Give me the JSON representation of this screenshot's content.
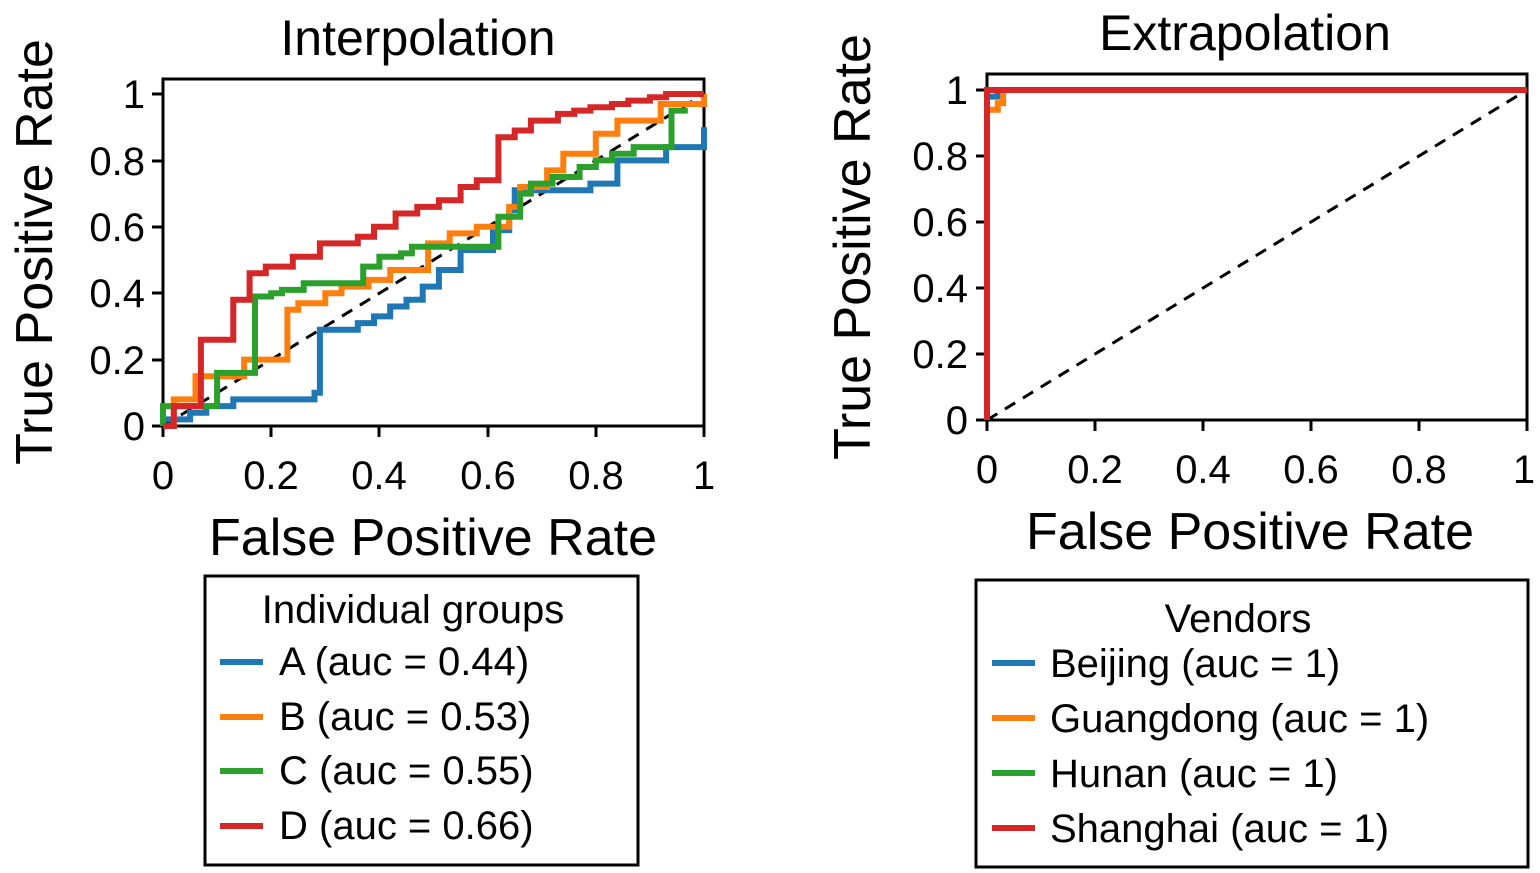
{
  "chart_data": [
    {
      "type": "line",
      "title": "Interpolation",
      "xlabel": "False Positive Rate",
      "ylabel": "True Positive Rate",
      "xlim": [
        0,
        1
      ],
      "ylim": [
        0,
        1
      ],
      "xticks": [
        "0",
        "0.2",
        "0.4",
        "0.6",
        "0.8",
        "1"
      ],
      "yticks": [
        "0",
        "0.2",
        "0.4",
        "0.6",
        "0.8",
        "1"
      ],
      "grid": false,
      "diagonal": true,
      "legend": {
        "title": "Individual groups",
        "placement": "below",
        "entries": [
          "A (auc = 0.44)",
          "B (auc = 0.53)",
          "C (auc = 0.55)",
          "D (auc = 0.66)"
        ]
      },
      "series": [
        {
          "name": "A (auc = 0.44)",
          "color": "#1f77b4",
          "x": [
            0,
            0,
            0.05,
            0.05,
            0.08,
            0.08,
            0.13,
            0.13,
            0.28,
            0.28,
            0.29,
            0.29,
            0.36,
            0.36,
            0.39,
            0.39,
            0.42,
            0.42,
            0.45,
            0.45,
            0.48,
            0.48,
            0.51,
            0.51,
            0.55,
            0.55,
            0.61,
            0.61,
            0.64,
            0.64,
            0.65,
            0.65,
            0.79,
            0.79,
            0.84,
            0.84,
            0.93,
            0.93,
            1,
            1
          ],
          "y": [
            0,
            0.02,
            0.02,
            0.04,
            0.04,
            0.06,
            0.06,
            0.08,
            0.08,
            0.1,
            0.1,
            0.29,
            0.29,
            0.31,
            0.31,
            0.33,
            0.33,
            0.36,
            0.36,
            0.38,
            0.38,
            0.42,
            0.42,
            0.47,
            0.47,
            0.53,
            0.53,
            0.59,
            0.59,
            0.65,
            0.65,
            0.71,
            0.71,
            0.73,
            0.73,
            0.8,
            0.8,
            0.84,
            0.84,
            0.9
          ]
        },
        {
          "name": "B (auc = 0.53)",
          "color": "#ff7f0e",
          "x": [
            0,
            0.02,
            0.02,
            0.06,
            0.06,
            0.15,
            0.15,
            0.23,
            0.23,
            0.25,
            0.25,
            0.3,
            0.3,
            0.33,
            0.33,
            0.38,
            0.38,
            0.42,
            0.42,
            0.49,
            0.49,
            0.53,
            0.53,
            0.58,
            0.58,
            0.64,
            0.64,
            0.66,
            0.66,
            0.71,
            0.71,
            0.74,
            0.74,
            0.8,
            0.8,
            0.84,
            0.84,
            0.92,
            0.92,
            1,
            1
          ],
          "y": [
            0,
            0,
            0.08,
            0.08,
            0.15,
            0.15,
            0.2,
            0.2,
            0.35,
            0.35,
            0.37,
            0.37,
            0.4,
            0.4,
            0.42,
            0.42,
            0.44,
            0.44,
            0.47,
            0.47,
            0.55,
            0.55,
            0.58,
            0.58,
            0.6,
            0.6,
            0.66,
            0.66,
            0.72,
            0.72,
            0.77,
            0.77,
            0.82,
            0.82,
            0.88,
            0.88,
            0.92,
            0.92,
            0.97,
            0.97,
            1
          ]
        },
        {
          "name": "C (auc = 0.55)",
          "color": "#2ca02c",
          "x": [
            0,
            0,
            0.1,
            0.1,
            0.17,
            0.17,
            0.2,
            0.2,
            0.22,
            0.22,
            0.26,
            0.26,
            0.37,
            0.37,
            0.4,
            0.4,
            0.44,
            0.44,
            0.46,
            0.46,
            0.62,
            0.62,
            0.66,
            0.66,
            0.68,
            0.68,
            0.72,
            0.72,
            0.77,
            0.77,
            0.8,
            0.8,
            0.83,
            0.83,
            0.87,
            0.87,
            0.94,
            0.94,
            0.97
          ],
          "y": [
            0,
            0.06,
            0.06,
            0.16,
            0.16,
            0.39,
            0.39,
            0.4,
            0.4,
            0.41,
            0.41,
            0.43,
            0.43,
            0.48,
            0.48,
            0.51,
            0.51,
            0.52,
            0.52,
            0.54,
            0.54,
            0.63,
            0.63,
            0.7,
            0.7,
            0.73,
            0.73,
            0.75,
            0.75,
            0.78,
            0.78,
            0.8,
            0.8,
            0.82,
            0.82,
            0.84,
            0.84,
            0.95,
            0.95
          ]
        },
        {
          "name": "D (auc = 0.66)",
          "color": "#d62728",
          "x": [
            0,
            0.02,
            0.02,
            0.07,
            0.07,
            0.13,
            0.13,
            0.16,
            0.16,
            0.19,
            0.19,
            0.24,
            0.24,
            0.29,
            0.29,
            0.36,
            0.36,
            0.39,
            0.39,
            0.43,
            0.43,
            0.47,
            0.47,
            0.51,
            0.51,
            0.55,
            0.55,
            0.58,
            0.58,
            0.62,
            0.62,
            0.65,
            0.65,
            0.68,
            0.68,
            0.73,
            0.73,
            0.76,
            0.76,
            0.79,
            0.79,
            0.83,
            0.83,
            0.86,
            0.86,
            0.9,
            0.9,
            0.93,
            0.93,
            1
          ],
          "y": [
            0,
            0,
            0.06,
            0.06,
            0.26,
            0.26,
            0.38,
            0.38,
            0.46,
            0.46,
            0.48,
            0.48,
            0.51,
            0.51,
            0.55,
            0.55,
            0.57,
            0.57,
            0.6,
            0.6,
            0.64,
            0.64,
            0.66,
            0.66,
            0.68,
            0.68,
            0.72,
            0.72,
            0.74,
            0.74,
            0.87,
            0.87,
            0.89,
            0.89,
            0.92,
            0.92,
            0.94,
            0.94,
            0.95,
            0.95,
            0.96,
            0.96,
            0.97,
            0.97,
            0.98,
            0.98,
            0.99,
            0.99,
            1,
            1
          ]
        }
      ]
    },
    {
      "type": "line",
      "title": "Extrapolation",
      "xlabel": "False Positive Rate",
      "ylabel": "True Positive Rate",
      "xlim": [
        0,
        1
      ],
      "ylim": [
        0,
        1
      ],
      "xticks": [
        "0",
        "0.2",
        "0.4",
        "0.6",
        "0.8",
        "1"
      ],
      "yticks": [
        "0",
        "0.2",
        "0.4",
        "0.6",
        "0.8",
        "1"
      ],
      "grid": false,
      "diagonal": true,
      "legend": {
        "title": "Vendors",
        "placement": "below",
        "entries": [
          "Beijing (auc = 1)",
          "Guangdong (auc = 1)",
          "Hunan (auc = 1)",
          "Shanghai (auc = 1)"
        ]
      },
      "series": [
        {
          "name": "Beijing (auc = 1)",
          "color": "#1f77b4",
          "x": [
            0,
            0,
            0.02,
            0.02,
            1
          ],
          "y": [
            0,
            0.98,
            0.98,
            1,
            1
          ]
        },
        {
          "name": "Guangdong (auc = 1)",
          "color": "#ff7f0e",
          "x": [
            0,
            0,
            0.02,
            0.02,
            0.03,
            0.03,
            1
          ],
          "y": [
            0,
            0.94,
            0.94,
            0.96,
            0.96,
            1,
            1
          ]
        },
        {
          "name": "Hunan (auc = 1)",
          "color": "#2ca02c",
          "x": [
            0,
            0,
            1
          ],
          "y": [
            0,
            1,
            1
          ]
        },
        {
          "name": "Shanghai (auc = 1)",
          "color": "#d62728",
          "x": [
            0,
            0,
            1
          ],
          "y": [
            0,
            1,
            1
          ]
        }
      ]
    }
  ]
}
